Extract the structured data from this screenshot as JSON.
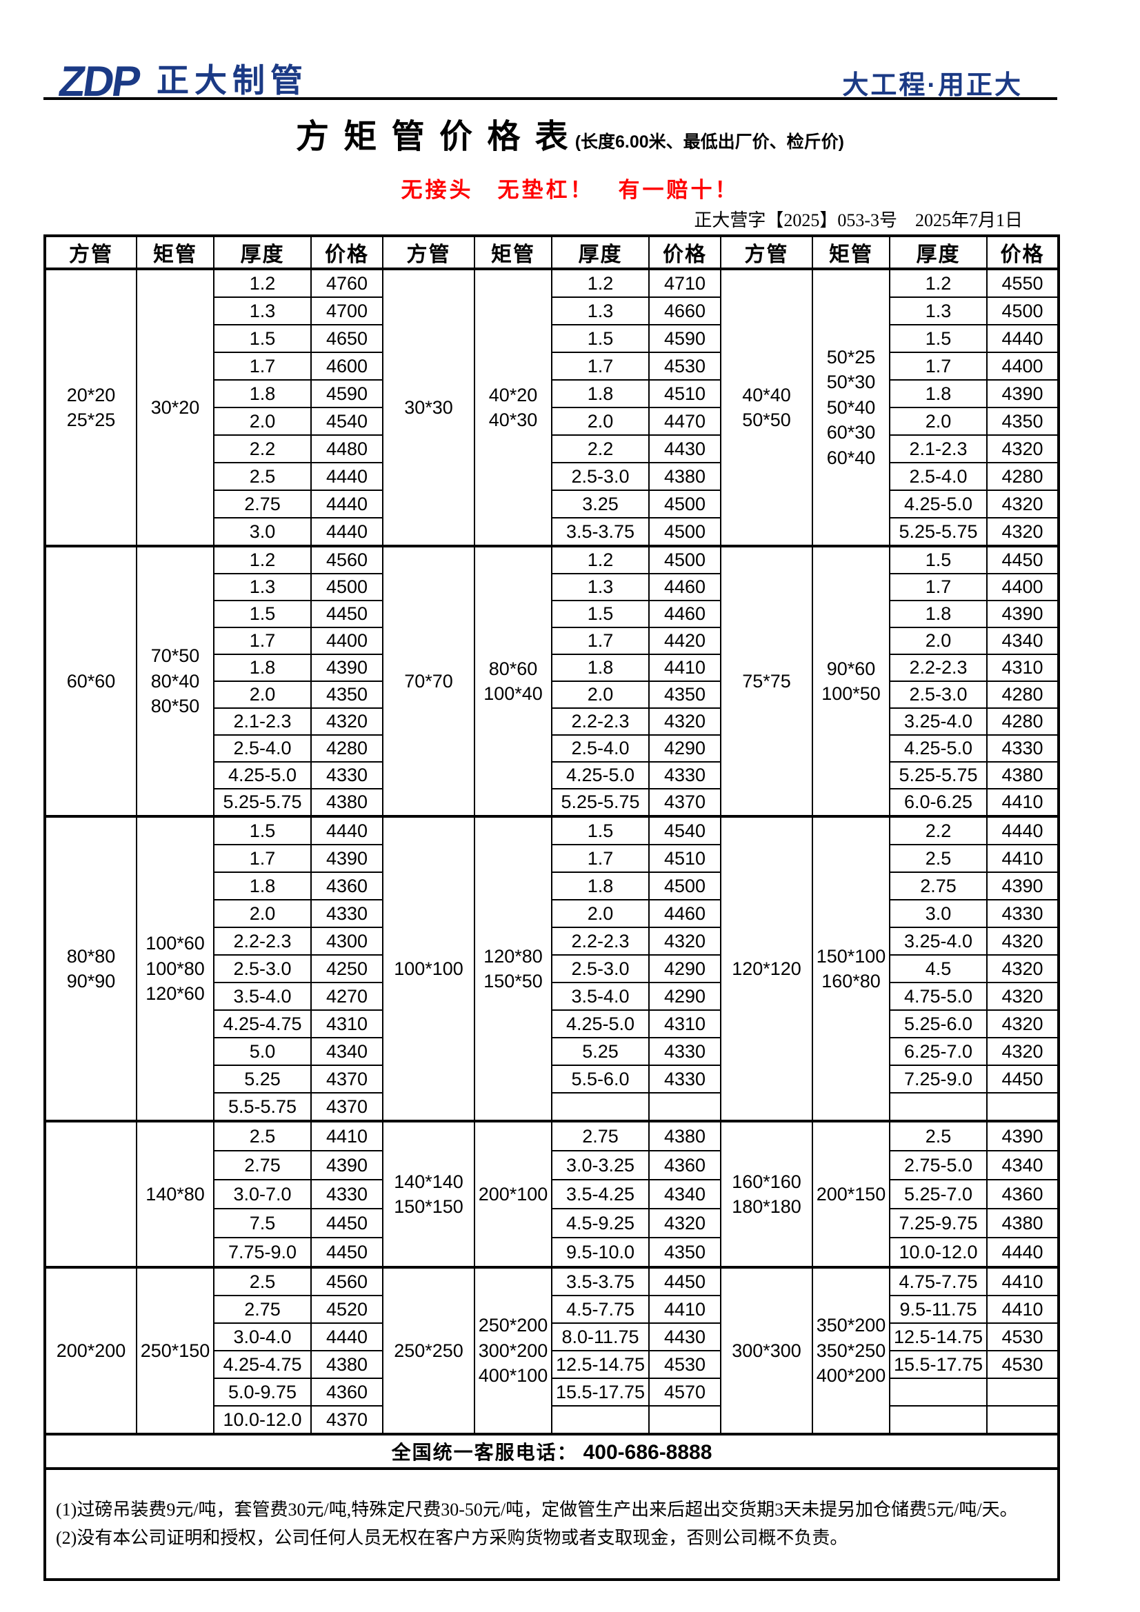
{
  "colors": {
    "brand_blue": "#1B3A85",
    "alert_red": "#FF0000"
  },
  "header": {
    "logo_zdp": "ZDP",
    "logo_name": "正大制管",
    "slogan": "大工程·用正大"
  },
  "title": {
    "main": "方 矩 管 价 格 表",
    "note": "(长度6.00米、最低出厂价、检斤价)",
    "red_slogan": "无接头　无垫杠！　有一赔十！",
    "doc_no": "正大营字【2025】053-3号　2025年7月1日"
  },
  "table": {
    "col_headers": [
      "方管",
      "矩管",
      "厚度",
      "价格"
    ],
    "blocks": [
      {
        "groups": [
          {
            "fang": [
              "20*20",
              "25*25"
            ],
            "ju": [
              "30*20"
            ],
            "data": [
              [
                "1.2",
                "4760"
              ],
              [
                "1.3",
                "4700"
              ],
              [
                "1.5",
                "4650"
              ],
              [
                "1.7",
                "4600"
              ],
              [
                "1.8",
                "4590"
              ],
              [
                "2.0",
                "4540"
              ],
              [
                "2.2",
                "4480"
              ],
              [
                "2.5",
                "4440"
              ],
              [
                "2.75",
                "4440"
              ],
              [
                "3.0",
                "4440"
              ]
            ]
          },
          {
            "fang": [
              "30*30"
            ],
            "ju": [
              "40*20",
              "40*30"
            ],
            "data": [
              [
                "1.2",
                "4710"
              ],
              [
                "1.3",
                "4660"
              ],
              [
                "1.5",
                "4590"
              ],
              [
                "1.7",
                "4530"
              ],
              [
                "1.8",
                "4510"
              ],
              [
                "2.0",
                "4470"
              ],
              [
                "2.2",
                "4430"
              ],
              [
                "2.5-3.0",
                "4380"
              ],
              [
                "3.25",
                "4500"
              ],
              [
                "3.5-3.75",
                "4500"
              ]
            ]
          },
          {
            "fang": [
              "40*40",
              "50*50"
            ],
            "ju": [
              "50*25",
              "50*30",
              "50*40",
              "60*30",
              "60*40"
            ],
            "data": [
              [
                "1.2",
                "4550"
              ],
              [
                "1.3",
                "4500"
              ],
              [
                "1.5",
                "4440"
              ],
              [
                "1.7",
                "4400"
              ],
              [
                "1.8",
                "4390"
              ],
              [
                "2.0",
                "4350"
              ],
              [
                "2.1-2.3",
                "4320"
              ],
              [
                "2.5-4.0",
                "4280"
              ],
              [
                "4.25-5.0",
                "4320"
              ],
              [
                "5.25-5.75",
                "4320"
              ]
            ]
          }
        ]
      },
      {
        "groups": [
          {
            "fang": [
              "60*60"
            ],
            "ju": [
              "70*50",
              "80*40",
              "80*50"
            ],
            "data": [
              [
                "1.2",
                "4560"
              ],
              [
                "1.3",
                "4500"
              ],
              [
                "1.5",
                "4450"
              ],
              [
                "1.7",
                "4400"
              ],
              [
                "1.8",
                "4390"
              ],
              [
                "2.0",
                "4350"
              ],
              [
                "2.1-2.3",
                "4320"
              ],
              [
                "2.5-4.0",
                "4280"
              ],
              [
                "4.25-5.0",
                "4330"
              ],
              [
                "5.25-5.75",
                "4380"
              ]
            ]
          },
          {
            "fang": [
              "70*70"
            ],
            "ju": [
              "80*60",
              "100*40"
            ],
            "data": [
              [
                "1.2",
                "4500"
              ],
              [
                "1.3",
                "4460"
              ],
              [
                "1.5",
                "4460"
              ],
              [
                "1.7",
                "4420"
              ],
              [
                "1.8",
                "4410"
              ],
              [
                "2.0",
                "4350"
              ],
              [
                "2.2-2.3",
                "4320"
              ],
              [
                "2.5-4.0",
                "4290"
              ],
              [
                "4.25-5.0",
                "4330"
              ],
              [
                "5.25-5.75",
                "4370"
              ]
            ]
          },
          {
            "fang": [
              "75*75"
            ],
            "ju": [
              "90*60",
              "100*50"
            ],
            "data": [
              [
                "1.5",
                "4450"
              ],
              [
                "1.7",
                "4400"
              ],
              [
                "1.8",
                "4390"
              ],
              [
                "2.0",
                "4340"
              ],
              [
                "2.2-2.3",
                "4310"
              ],
              [
                "2.5-3.0",
                "4280"
              ],
              [
                "3.25-4.0",
                "4280"
              ],
              [
                "4.25-5.0",
                "4330"
              ],
              [
                "5.25-5.75",
                "4380"
              ],
              [
                "6.0-6.25",
                "4410"
              ]
            ]
          }
        ]
      },
      {
        "groups": [
          {
            "fang": [
              "80*80",
              "90*90"
            ],
            "ju": [
              "100*60",
              "100*80",
              "120*60"
            ],
            "data": [
              [
                "1.5",
                "4440"
              ],
              [
                "1.7",
                "4390"
              ],
              [
                "1.8",
                "4360"
              ],
              [
                "2.0",
                "4330"
              ],
              [
                "2.2-2.3",
                "4300"
              ],
              [
                "2.5-3.0",
                "4250"
              ],
              [
                "3.5-4.0",
                "4270"
              ],
              [
                "4.25-4.75",
                "4310"
              ],
              [
                "5.0",
                "4340"
              ],
              [
                "5.25",
                "4370"
              ],
              [
                "5.5-5.75",
                "4370"
              ]
            ]
          },
          {
            "fang": [
              "100*100"
            ],
            "ju": [
              "120*80",
              "150*50"
            ],
            "data": [
              [
                "1.5",
                "4540"
              ],
              [
                "1.7",
                "4510"
              ],
              [
                "1.8",
                "4500"
              ],
              [
                "2.0",
                "4460"
              ],
              [
                "2.2-2.3",
                "4320"
              ],
              [
                "2.5-3.0",
                "4290"
              ],
              [
                "3.5-4.0",
                "4290"
              ],
              [
                "4.25-5.0",
                "4310"
              ],
              [
                "5.25",
                "4330"
              ],
              [
                "5.5-6.0",
                "4330"
              ],
              [
                "",
                ""
              ]
            ]
          },
          {
            "fang": [
              "120*120"
            ],
            "ju": [
              "150*100",
              "160*80"
            ],
            "data": [
              [
                "2.2",
                "4440"
              ],
              [
                "2.5",
                "4410"
              ],
              [
                "2.75",
                "4390"
              ],
              [
                "3.0",
                "4330"
              ],
              [
                "3.25-4.0",
                "4320"
              ],
              [
                "4.5",
                "4320"
              ],
              [
                "4.75-5.0",
                "4320"
              ],
              [
                "5.25-6.0",
                "4320"
              ],
              [
                "6.25-7.0",
                "4320"
              ],
              [
                "7.25-9.0",
                "4450"
              ],
              [
                "",
                ""
              ]
            ]
          }
        ]
      },
      {
        "groups": [
          {
            "fang": [],
            "ju": [
              "140*80"
            ],
            "data": [
              [
                "2.5",
                "4410"
              ],
              [
                "2.75",
                "4390"
              ],
              [
                "3.0-7.0",
                "4330"
              ],
              [
                "7.5",
                "4450"
              ],
              [
                "7.75-9.0",
                "4450"
              ]
            ]
          },
          {
            "fang": [
              "140*140",
              "150*150"
            ],
            "ju": [
              "200*100"
            ],
            "data": [
              [
                "2.75",
                "4380"
              ],
              [
                "3.0-3.25",
                "4360"
              ],
              [
                "3.5-4.25",
                "4340"
              ],
              [
                "4.5-9.25",
                "4320"
              ],
              [
                "9.5-10.0",
                "4350"
              ]
            ]
          },
          {
            "fang": [
              "160*160",
              "180*180"
            ],
            "ju": [
              "200*150"
            ],
            "data": [
              [
                "2.5",
                "4390"
              ],
              [
                "2.75-5.0",
                "4340"
              ],
              [
                "5.25-7.0",
                "4360"
              ],
              [
                "7.25-9.75",
                "4380"
              ],
              [
                "10.0-12.0",
                "4440"
              ]
            ]
          }
        ]
      },
      {
        "groups": [
          {
            "fang": [
              "200*200"
            ],
            "ju": [
              "250*150"
            ],
            "data": [
              [
                "2.5",
                "4560"
              ],
              [
                "2.75",
                "4520"
              ],
              [
                "3.0-4.0",
                "4440"
              ],
              [
                "4.25-4.75",
                "4380"
              ],
              [
                "5.0-9.75",
                "4360"
              ],
              [
                "10.0-12.0",
                "4370"
              ]
            ]
          },
          {
            "fang": [
              "250*250"
            ],
            "ju": [
              "250*200",
              "300*200",
              "400*100"
            ],
            "data": [
              [
                "3.5-3.75",
                "4450"
              ],
              [
                "4.5-7.75",
                "4410"
              ],
              [
                "8.0-11.75",
                "4430"
              ],
              [
                "12.5-14.75",
                "4530"
              ],
              [
                "15.5-17.75",
                "4570"
              ],
              [
                "",
                ""
              ]
            ]
          },
          {
            "fang": [
              "300*300"
            ],
            "ju": [
              "350*200",
              "350*250",
              "400*200"
            ],
            "data": [
              [
                "4.75-7.75",
                "4410"
              ],
              [
                "9.5-11.75",
                "4410"
              ],
              [
                "12.5-14.75",
                "4530"
              ],
              [
                "15.5-17.75",
                "4530"
              ],
              [
                "",
                ""
              ],
              [
                "",
                ""
              ]
            ]
          }
        ]
      }
    ]
  },
  "footer": {
    "service_label": "全国统一客服电话：",
    "service_phone": "400-686-8888",
    "notes": [
      "(1)过磅吊装费9元/吨，套管费30元/吨,特殊定尺费30-50元/吨，定做管生产出来后超出交货期3天未提另加仓储费5元/吨/天。",
      "(2)没有本公司证明和授权，公司任何人员无权在客户方采购货物或者支取现金，否则公司概不负责。"
    ]
  }
}
